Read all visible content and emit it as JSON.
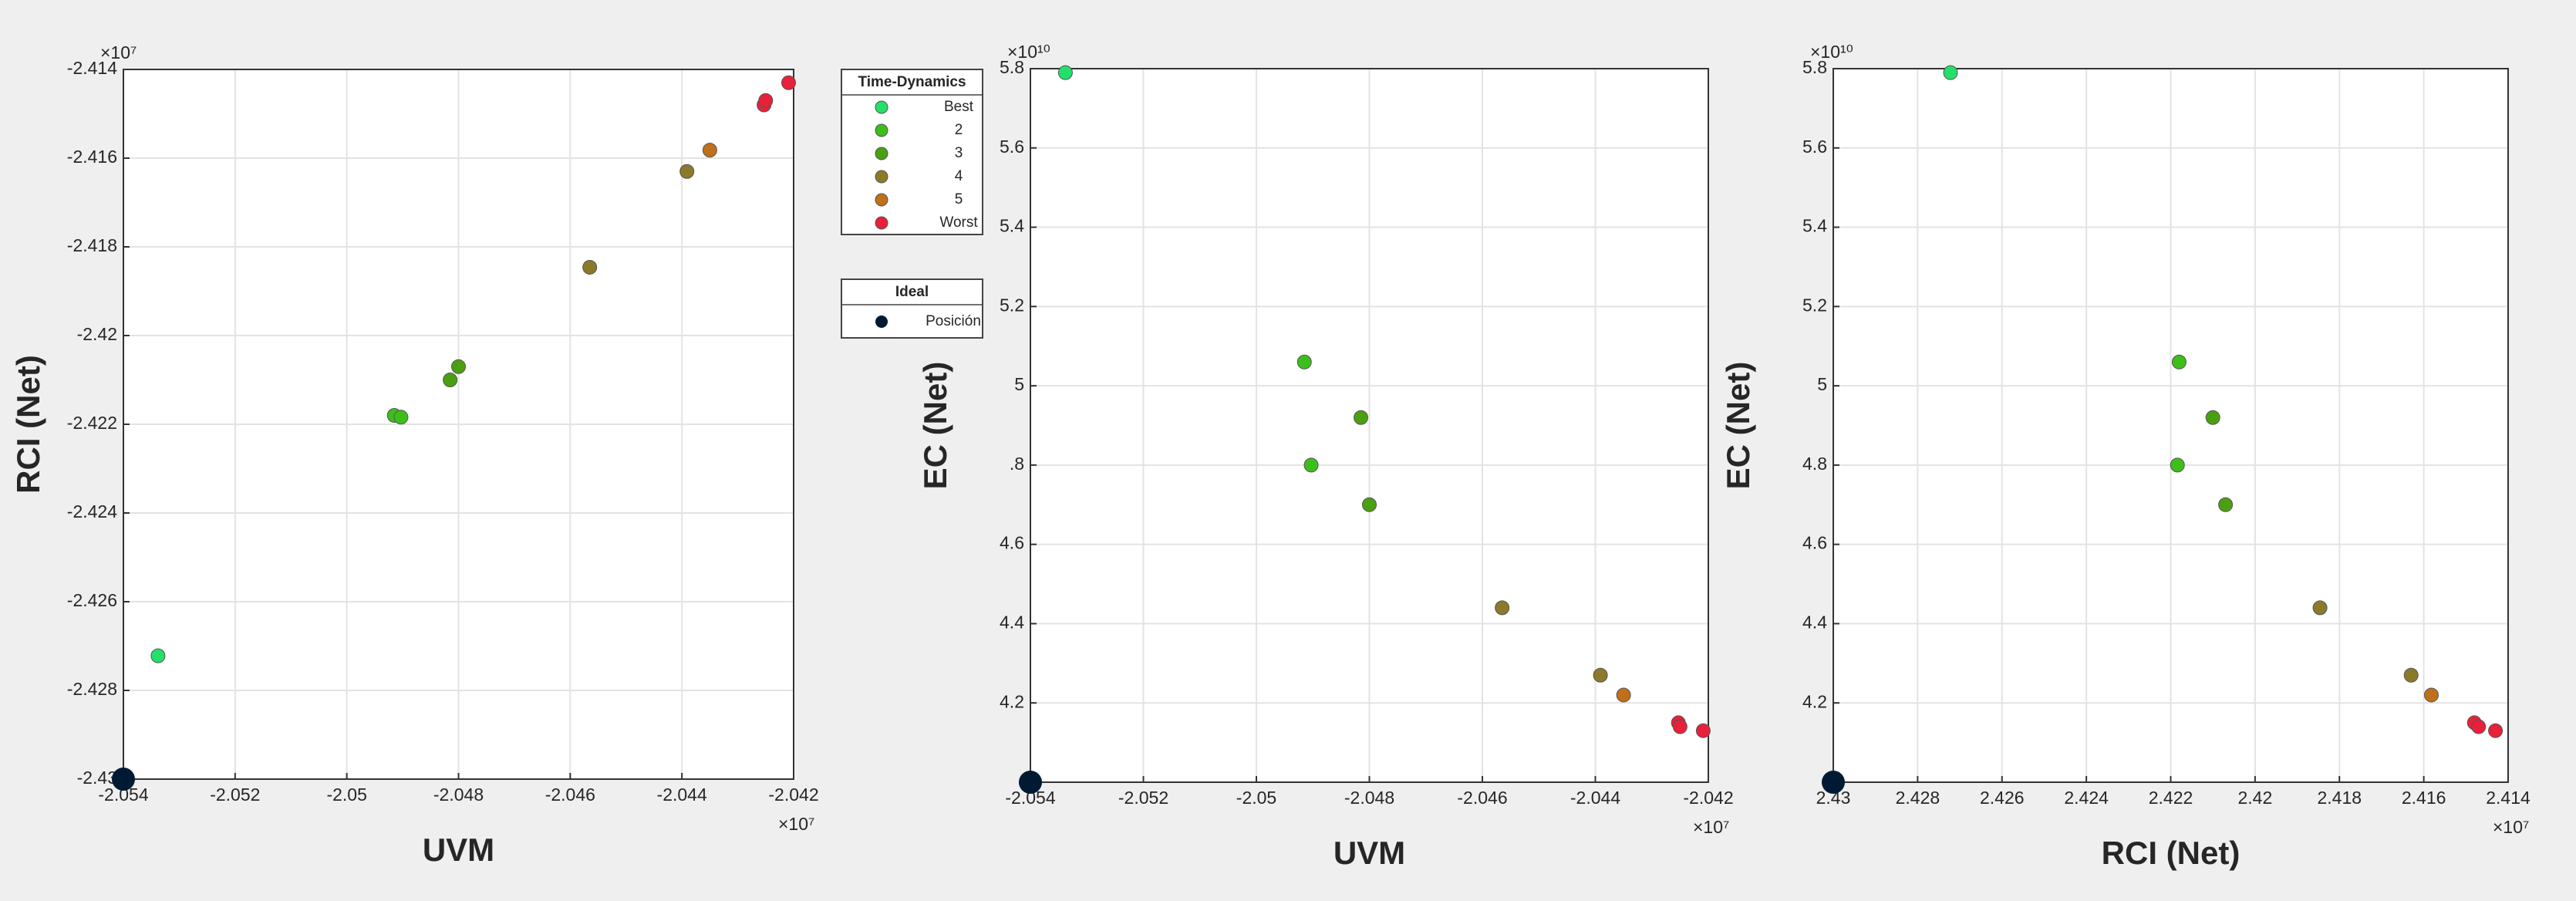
{
  "chart_data": [
    {
      "type": "scatter",
      "x_label": "UVM",
      "y_label": "RCI (Net)",
      "x_exponent": "×10⁷",
      "y_exponent": "×10⁷",
      "xlim": [
        -2.054,
        -2.042
      ],
      "xticks": [
        -2.054,
        -2.052,
        -2.05,
        -2.048,
        -2.046,
        -2.044,
        -2.042
      ],
      "ylim": [
        -2.43,
        -2.414
      ],
      "yticks": [
        -2.43,
        -2.428,
        -2.426,
        -2.424,
        -2.422,
        -2.42,
        -2.418,
        -2.416,
        -2.414
      ],
      "grid": true,
      "legend_title": "Time-Dynamics",
      "series": [
        {
          "name": "Best",
          "color": "#22e06a",
          "x": [
            -2.05338
          ],
          "y": [
            -2.42722
          ]
        },
        {
          "name": "2",
          "color": "#3cbf1a",
          "x": [
            -2.04915,
            -2.04903
          ],
          "y": [
            -2.4218,
            -2.42184
          ]
        },
        {
          "name": "3",
          "color": "#4aa010",
          "x": [
            -2.04815,
            -2.048
          ],
          "y": [
            -2.421,
            -2.4207
          ]
        },
        {
          "name": "4",
          "color": "#8a7a2a",
          "x": [
            -2.04565,
            -2.04391
          ],
          "y": [
            -2.41846,
            -2.4163
          ]
        },
        {
          "name": "5",
          "color": "#c0701a",
          "x": [
            -2.0435
          ],
          "y": [
            -2.41582
          ]
        },
        {
          "name": "Worst",
          "color": "#e8203a",
          "x": [
            -2.04253,
            -2.0425,
            -2.04209
          ],
          "y": [
            -2.4148,
            -2.4147,
            -2.4143
          ]
        }
      ],
      "ideal": {
        "title": "Ideal",
        "name": "Posición",
        "color": "#001a33",
        "x": [
          -2.054
        ],
        "y": [
          -2.43
        ]
      }
    },
    {
      "type": "scatter",
      "x_label": "UVM",
      "y_label": "EC (Net)",
      "x_exponent": "×10⁷",
      "y_exponent": "×10¹⁰",
      "xlim": [
        -2.054,
        -2.042
      ],
      "xticks": [
        -2.054,
        -2.052,
        -2.05,
        -2.048,
        -2.046,
        -2.044,
        -2.042
      ],
      "ylim": [
        4.0,
        5.8
      ],
      "yticks": [
        4.2,
        4.4,
        4.6,
        {
          "value": 4.8,
          "label": ".8"
        },
        5,
        5.2,
        5.4,
        5.6,
        5.8
      ],
      "grid": true,
      "series": [
        {
          "color": "#22e06a",
          "x": [
            -2.05338
          ],
          "y": [
            5.79
          ]
        },
        {
          "color": "#3cbf1a",
          "x": [
            -2.04915,
            -2.04903
          ],
          "y": [
            5.06,
            4.8
          ]
        },
        {
          "color": "#4aa010",
          "x": [
            -2.04815,
            -2.048
          ],
          "y": [
            4.92,
            4.7
          ]
        },
        {
          "color": "#8a7a2a",
          "x": [
            -2.04565,
            -2.04391
          ],
          "y": [
            4.44,
            4.27
          ]
        },
        {
          "color": "#c0701a",
          "x": [
            -2.0435
          ],
          "y": [
            4.22
          ]
        },
        {
          "color": "#e8203a",
          "x": [
            -2.04253,
            -2.0425,
            -2.04209
          ],
          "y": [
            4.15,
            4.14,
            4.13
          ]
        }
      ],
      "ideal": {
        "color": "#001a33",
        "x": [
          -2.054
        ],
        "y": [
          4.0
        ]
      }
    },
    {
      "type": "scatter",
      "x_label": "RCI (Net)",
      "y_label": "EC (Net)",
      "x_exponent": "×10⁷",
      "y_exponent": "×10¹⁰",
      "xlim": [
        2.43,
        2.414
      ],
      "xticks": [
        2.43,
        2.428,
        2.426,
        2.424,
        2.422,
        2.42,
        2.418,
        2.416,
        2.414
      ],
      "ylim": [
        4.0,
        5.8
      ],
      "yticks": [
        4.2,
        4.4,
        4.6,
        4.8,
        5,
        5.2,
        5.4,
        5.6,
        5.8
      ],
      "grid": true,
      "series": [
        {
          "color": "#22e06a",
          "x": [
            2.42722
          ],
          "y": [
            5.79
          ]
        },
        {
          "color": "#3cbf1a",
          "x": [
            2.4218,
            2.42184
          ],
          "y": [
            5.06,
            4.8
          ]
        },
        {
          "color": "#4aa010",
          "x": [
            2.421,
            2.4207
          ],
          "y": [
            4.92,
            4.7
          ]
        },
        {
          "color": "#8a7a2a",
          "x": [
            2.41846,
            2.4163
          ],
          "y": [
            4.44,
            4.27
          ]
        },
        {
          "color": "#c0701a",
          "x": [
            2.41582
          ],
          "y": [
            4.22
          ]
        },
        {
          "color": "#e8203a",
          "x": [
            2.4148,
            2.4147,
            2.4143
          ],
          "y": [
            4.15,
            4.14,
            4.13
          ]
        }
      ],
      "ideal": {
        "color": "#001a33",
        "x": [
          2.43
        ],
        "y": [
          4.0
        ]
      }
    }
  ]
}
